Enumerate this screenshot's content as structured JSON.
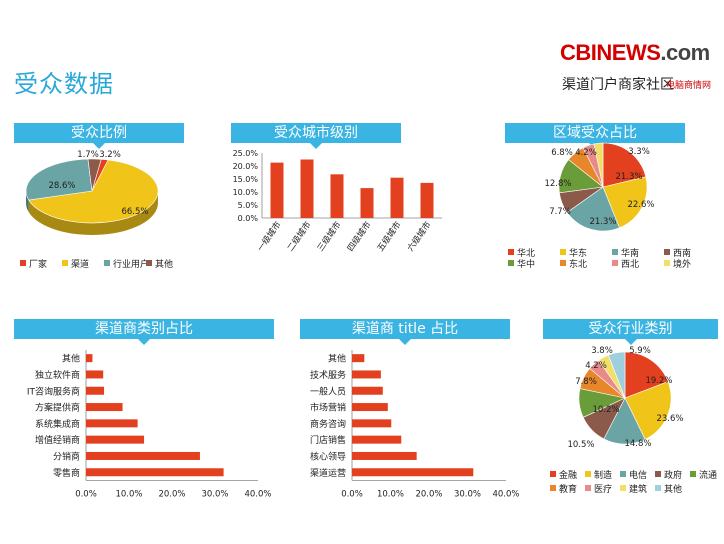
{
  "page": {
    "title": "受众数据"
  },
  "logo": {
    "main": "CBINEWS",
    "dot": ".com",
    "sub": "渠道门户商家社区",
    "sub2": "电脑商情网"
  },
  "colors": {
    "title_bar": "#3ab4e3",
    "bar": "#e3401f",
    "red": "#e3401f",
    "yellow": "#f0c419",
    "teal": "#6aa4a4",
    "brown": "#8b5a4a",
    "green": "#6b9c3a",
    "orange": "#e8862a",
    "pink": "#e88a8a",
    "lightyellow": "#f2df6a",
    "lightblue": "#9ecfde"
  },
  "chart_data": [
    {
      "id": "audience-ratio",
      "type": "pie",
      "title": "受众比例",
      "labels": [
        "厂家",
        "渠道",
        "行业用户",
        "其他"
      ],
      "values": [
        1.7,
        66.5,
        28.6,
        3.2
      ],
      "value_labels": [
        "1.7%",
        "66.5%",
        "28.6%",
        "3.2%"
      ],
      "colors": [
        "#e3401f",
        "#f0c419",
        "#6aa4a4",
        "#8b5a4a"
      ],
      "legend": "bottom"
    },
    {
      "id": "city-level",
      "type": "bar",
      "title": "受众城市级别",
      "categories": [
        "一级城市",
        "二级城市",
        "三级城市",
        "四级城市",
        "五级城市",
        "六级城市"
      ],
      "values": [
        21.3,
        22.5,
        16.8,
        11.5,
        15.5,
        13.5
      ],
      "ylim": [
        0,
        25
      ],
      "yticks": [
        "0.0%",
        "5.0%",
        "10.0%",
        "15.0%",
        "20.0%",
        "25.0%"
      ],
      "grid": false
    },
    {
      "id": "region",
      "type": "pie",
      "title": "区域受众占比",
      "labels": [
        "华北",
        "华东",
        "华南",
        "西南",
        "华中",
        "东北",
        "西北",
        "境外"
      ],
      "values": [
        21.3,
        22.6,
        21.3,
        7.7,
        12.8,
        6.8,
        4.2,
        3.3
      ],
      "value_labels": [
        "21.3%",
        "22.6%",
        "21.3%",
        "7.7%",
        "12.8%",
        "6.8%",
        "4.2%",
        "3.3%"
      ],
      "colors": [
        "#e3401f",
        "#f0c419",
        "#6aa4a4",
        "#8b5a4a",
        "#6b9c3a",
        "#e8862a",
        "#e88a8a",
        "#f2df6a"
      ],
      "legend": "bottom"
    },
    {
      "id": "channel-type",
      "type": "bar",
      "orientation": "horizontal",
      "title": "渠道商类别占比",
      "categories": [
        "其他",
        "独立软件商",
        "IT咨询服务商",
        "方案提供商",
        "系统集成商",
        "增值经销商",
        "分销商",
        "零售商"
      ],
      "values": [
        1.5,
        4.0,
        4.2,
        8.5,
        12.0,
        13.5,
        26.5,
        32.0
      ],
      "xlim": [
        0,
        40
      ],
      "xticks": [
        "0.0%",
        "10.0%",
        "20.0%",
        "30.0%",
        "40.0%"
      ],
      "grid": false
    },
    {
      "id": "channel-title",
      "type": "bar",
      "orientation": "horizontal",
      "title": "渠道商 title 占比",
      "categories": [
        "其他",
        "技术服务",
        "一般人员",
        "市场营销",
        "商务咨询",
        "门店销售",
        "核心领导",
        "渠道运营"
      ],
      "values": [
        3.2,
        7.5,
        8.0,
        9.3,
        10.2,
        12.8,
        16.8,
        31.5
      ],
      "xlim": [
        0,
        40
      ],
      "xticks": [
        "0.0%",
        "10.0%",
        "20.0%",
        "30.0%",
        "40.0%"
      ],
      "grid": false
    },
    {
      "id": "industry",
      "type": "pie",
      "title": "受众行业类别",
      "labels": [
        "金融",
        "制造",
        "电信",
        "政府",
        "流通",
        "教育",
        "医疗",
        "建筑",
        "其他"
      ],
      "values": [
        19.2,
        23.6,
        14.8,
        10.5,
        10.2,
        7.8,
        4.2,
        3.8,
        5.9
      ],
      "value_labels": [
        "19.2%",
        "23.6%",
        "14.8%",
        "10.5%",
        "10.2%",
        "7.8%",
        "4.2%",
        "3.8%",
        "5.9%"
      ],
      "colors": [
        "#e3401f",
        "#f0c419",
        "#6aa4a4",
        "#8b5a4a",
        "#6b9c3a",
        "#e8862a",
        "#e88a8a",
        "#f2df6a",
        "#9ecfde"
      ],
      "legend": "bottom"
    }
  ]
}
